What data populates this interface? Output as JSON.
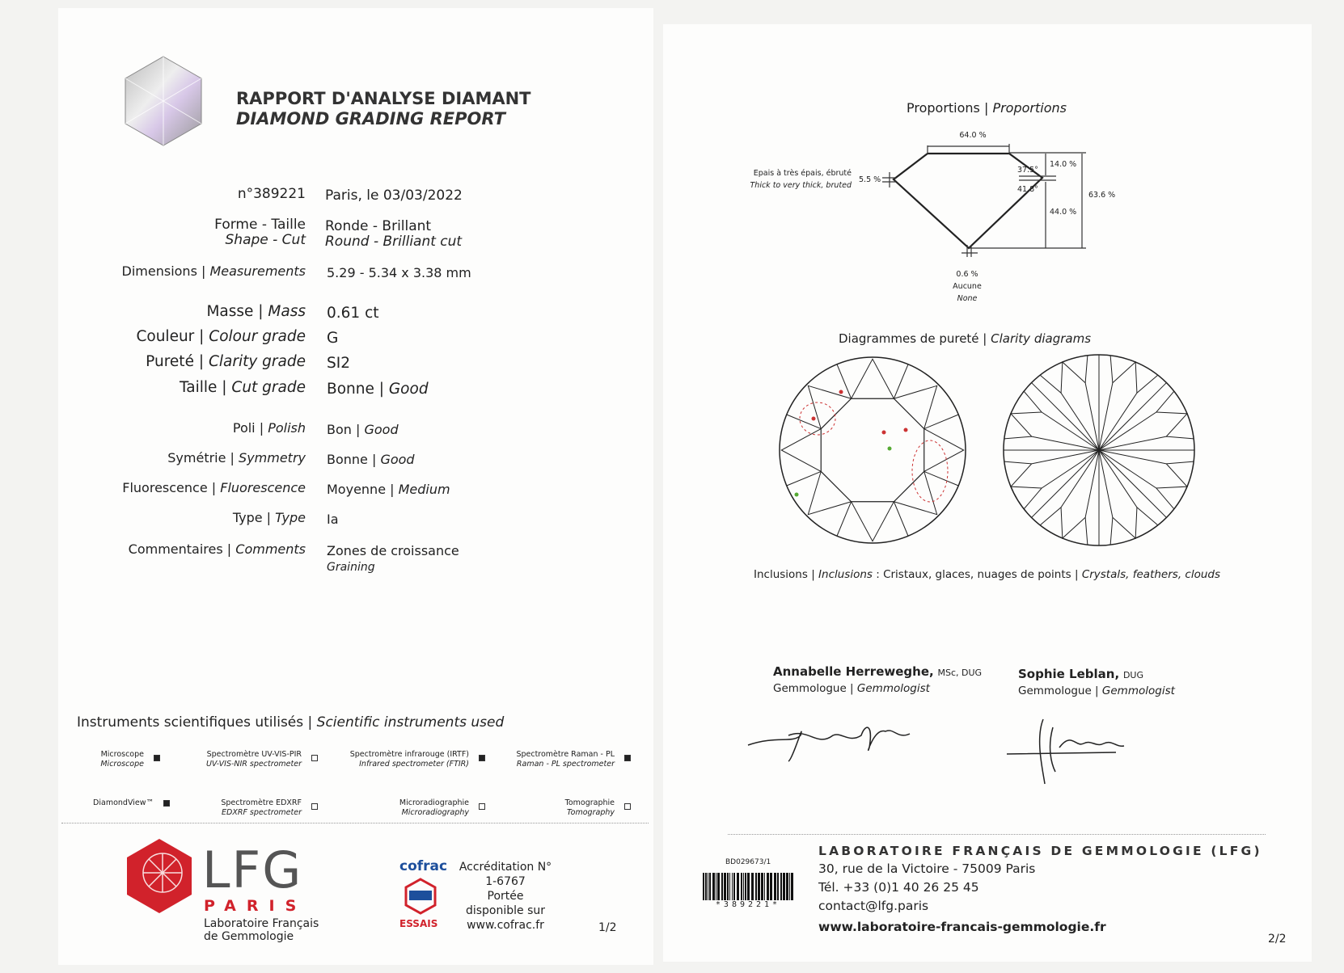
{
  "header": {
    "title_fr": "RAPPORT D'ANALYSE DIAMANT",
    "title_en": "DIAMOND GRADING REPORT"
  },
  "report": {
    "number": "n°389221",
    "date": "Paris, le 03/03/2022"
  },
  "fields": [
    {
      "fr": "Forme - Taille",
      "en": "Shape - Cut",
      "val_fr": "Ronde - Brillant",
      "val_en": "Round - Brilliant cut"
    },
    {
      "label": "Dimensions | ",
      "label_i": "Measurements",
      "value": "5.29 - 5.34 x 3.38 mm"
    },
    {
      "label": "Masse | ",
      "label_i": "Mass",
      "value": "0.61 ct"
    },
    {
      "label": "Couleur | ",
      "label_i": "Colour grade",
      "value": "G"
    },
    {
      "label": "Pureté | ",
      "label_i": "Clarity grade",
      "value": "SI2"
    },
    {
      "label": "Taille | ",
      "label_i": "Cut grade",
      "value": "Bonne | ",
      "value_i": "Good"
    },
    {
      "label": "Poli | ",
      "label_i": "Polish",
      "value": "Bon | ",
      "value_i": "Good"
    },
    {
      "label": "Symétrie | ",
      "label_i": "Symmetry",
      "value": "Bonne | ",
      "value_i": "Good"
    },
    {
      "label": "Fluorescence | ",
      "label_i": "Fluorescence",
      "value": "Moyenne | ",
      "value_i": "Medium"
    },
    {
      "label": "Type | ",
      "label_i": "Type",
      "value": "Ia"
    },
    {
      "label": "Commentaires | ",
      "label_i": "Comments",
      "value": "Zones de croissance",
      "value_i": "Graining"
    }
  ],
  "instruments": {
    "title": "Instruments scientifiques utilisés | ",
    "title_i": "Scientific instruments used",
    "items": [
      {
        "fr": "Microscope",
        "en": "Microscope",
        "checked": true
      },
      {
        "fr": "Spectromètre UV-VIS-PIR",
        "en": "UV-VIS-NIR spectrometer",
        "checked": false
      },
      {
        "fr": "Spectromètre infrarouge (IRTF)",
        "en": "Infrared spectrometer (FTIR)",
        "checked": true
      },
      {
        "fr": "Spectromètre Raman - PL",
        "en": "Raman - PL spectrometer",
        "checked": true
      },
      {
        "fr": "DiamondView™",
        "en": "",
        "checked": true
      },
      {
        "fr": "Spectromètre EDXRF",
        "en": "EDXRF spectrometer",
        "checked": false
      },
      {
        "fr": "Microradiographie",
        "en": "Microradiography",
        "checked": false
      },
      {
        "fr": "Tomographie",
        "en": "Tomography",
        "checked": false
      }
    ]
  },
  "logo": {
    "letters": "LFG",
    "city": "PARIS",
    "sub1": "Laboratoire Français",
    "sub2": "de Gemmologie",
    "brand_color": "#d1222b"
  },
  "cofrac": {
    "name": "cofrac",
    "sub": "ESSAIS",
    "lines": [
      "Accréditation N°",
      "1-6767",
      "Portée",
      "disponible sur",
      "www.cofrac.fr"
    ]
  },
  "page_left": "1/2",
  "proportions": {
    "title": "Proportions | ",
    "title_i": "Proportions",
    "table": "64.0 %",
    "crown_h": "14.0 %",
    "crown_angle": "37.5°",
    "pav_angle": "41.8°",
    "pav_depth": "44.0 %",
    "total_depth": "63.6 %",
    "girdle": "5.5 %",
    "girdle_fr": "Epais à très épais, ébruté",
    "girdle_en": "Thick to very thick, bruted",
    "culet": "0.6 %",
    "culet_fr": "Aucune",
    "culet_en": "None"
  },
  "clarity": {
    "title": "Diagrammes de pureté | ",
    "title_i": "Clarity diagrams",
    "incl_label": "Inclusions | ",
    "incl_label_i": "Inclusions",
    "incl_fr": " : Cristaux, glaces, nuages de points | ",
    "incl_en": "Crystals, feathers, clouds"
  },
  "signatures": [
    {
      "name": "Annabelle Herreweghe,",
      "title": "MSc, DUG",
      "role": "Gemmologue | ",
      "role_i": "Gemmologist"
    },
    {
      "name": "Sophie Leblan,",
      "title": "DUG",
      "role": "Gemmologue | ",
      "role_i": "Gemmologist"
    }
  ],
  "footer": {
    "code": "BD029673/1",
    "barcode_text": "*389221*",
    "lab": "LABORATOIRE FRANÇAIS DE GEMMOLOGIE (LFG)",
    "address": "30, rue de la Victoire - 75009 Paris",
    "tel": "Tél. +33 (0)1 40 26 25 45",
    "email": "contact@lfg.paris",
    "web": "www.laboratoire-francais-gemmologie.fr",
    "page": "2/2"
  }
}
